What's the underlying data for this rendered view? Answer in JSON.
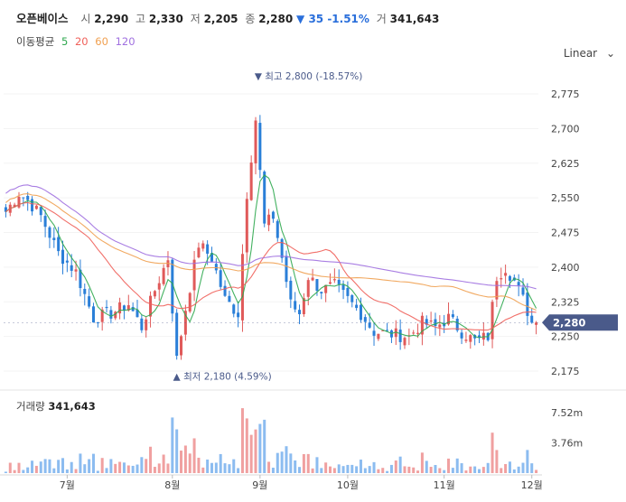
{
  "header": {
    "name": "오픈베이스",
    "open_label": "시",
    "open": "2,290",
    "high_label": "고",
    "high": "2,330",
    "low_label": "저",
    "low": "2,205",
    "close_label": "종",
    "close": "2,280",
    "change": "▼ 35 -1.51%",
    "volume_label": "거",
    "volume": "341,643"
  },
  "ma_legend": {
    "title": "이동평균",
    "periods": [
      {
        "label": "5",
        "color": "#2fa84f"
      },
      {
        "label": "20",
        "color": "#f0605a"
      },
      {
        "label": "60",
        "color": "#f0a050"
      },
      {
        "label": "120",
        "color": "#a070e0"
      }
    ]
  },
  "scale_mode": "Linear",
  "volume_panel": {
    "title": "거래량",
    "value": "341,643"
  },
  "colors": {
    "up": "#e05a5a",
    "down": "#2a7fd8",
    "price_tag": "#4a5a8a",
    "annotation": "#4a5a8a"
  },
  "chart_data": {
    "type": "candlestick",
    "y_ticks": [
      "2,775",
      "2,700",
      "2,625",
      "2,550",
      "2,475",
      "2,400",
      "2,325",
      "2,250",
      "2,175"
    ],
    "y_tick_values": [
      2775,
      2700,
      2625,
      2550,
      2475,
      2400,
      2325,
      2250,
      2175
    ],
    "ylim": [
      2150,
      2810
    ],
    "x_ticks": [
      "7월",
      "8월",
      "9월",
      "10월",
      "11월",
      "12월"
    ],
    "last_price_tag": "2,280",
    "last_price": 2280,
    "high_annotation": {
      "label": "최고",
      "value": "2,800 (-18.57%)",
      "price": 2800
    },
    "low_annotation": {
      "label": "최저",
      "value": "2,180 (4.59%)",
      "price": 2180
    },
    "volume_ticks": [
      "7.52m",
      "3.76m"
    ],
    "volume_tick_values": [
      7.52,
      3.76
    ],
    "volume_max": 9.4,
    "candle_count": 122,
    "x_tick_index": [
      14,
      38,
      58,
      78,
      100,
      120
    ],
    "trend_points": [
      [
        0,
        2520
      ],
      [
        3,
        2560
      ],
      [
        5,
        2545
      ],
      [
        8,
        2510
      ],
      [
        12,
        2430
      ],
      [
        16,
        2390
      ],
      [
        20,
        2290
      ],
      [
        24,
        2300
      ],
      [
        28,
        2320
      ],
      [
        31,
        2270
      ],
      [
        34,
        2350
      ],
      [
        37,
        2420
      ],
      [
        39,
        2200
      ],
      [
        41,
        2310
      ],
      [
        44,
        2450
      ],
      [
        47,
        2420
      ],
      [
        50,
        2330
      ],
      [
        53,
        2300
      ],
      [
        55,
        2560
      ],
      [
        57,
        2720
      ],
      [
        59,
        2490
      ],
      [
        61,
        2510
      ],
      [
        63,
        2420
      ],
      [
        65,
        2320
      ],
      [
        67,
        2300
      ],
      [
        69,
        2380
      ],
      [
        72,
        2350
      ],
      [
        75,
        2360
      ],
      [
        78,
        2330
      ],
      [
        81,
        2300
      ],
      [
        84,
        2260
      ],
      [
        88,
        2255
      ],
      [
        92,
        2250
      ],
      [
        95,
        2280
      ],
      [
        98,
        2270
      ],
      [
        101,
        2290
      ],
      [
        104,
        2260
      ],
      [
        107,
        2240
      ],
      [
        110,
        2250
      ],
      [
        112,
        2380
      ],
      [
        114,
        2400
      ],
      [
        116,
        2370
      ],
      [
        118,
        2330
      ],
      [
        120,
        2280
      ],
      [
        121,
        2280
      ]
    ]
  }
}
